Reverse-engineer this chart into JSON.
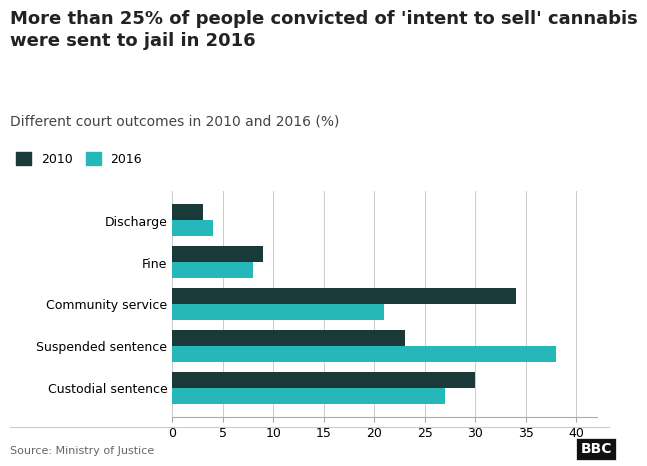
{
  "title": "More than 25% of people convicted of 'intent to sell' cannabis\nwere sent to jail in 2016",
  "subtitle": "Different court outcomes in 2010 and 2016 (%)",
  "categories": [
    "Custodial sentence",
    "Suspended sentence",
    "Community service",
    "Fine",
    "Discharge"
  ],
  "values_2010": [
    30,
    23,
    34,
    9,
    3
  ],
  "values_2016": [
    27,
    38,
    21,
    8,
    4
  ],
  "color_2010": "#1a3a3a",
  "color_2016": "#26b8b8",
  "source": "Source: Ministry of Justice",
  "xlim": [
    0,
    42
  ],
  "xticks": [
    0,
    5,
    10,
    15,
    20,
    25,
    30,
    35,
    40
  ],
  "bar_height": 0.38,
  "background_color": "#ffffff",
  "legend_2010": "2010",
  "legend_2016": "2016",
  "title_fontsize": 13,
  "subtitle_fontsize": 10,
  "tick_fontsize": 9,
  "label_fontsize": 9
}
